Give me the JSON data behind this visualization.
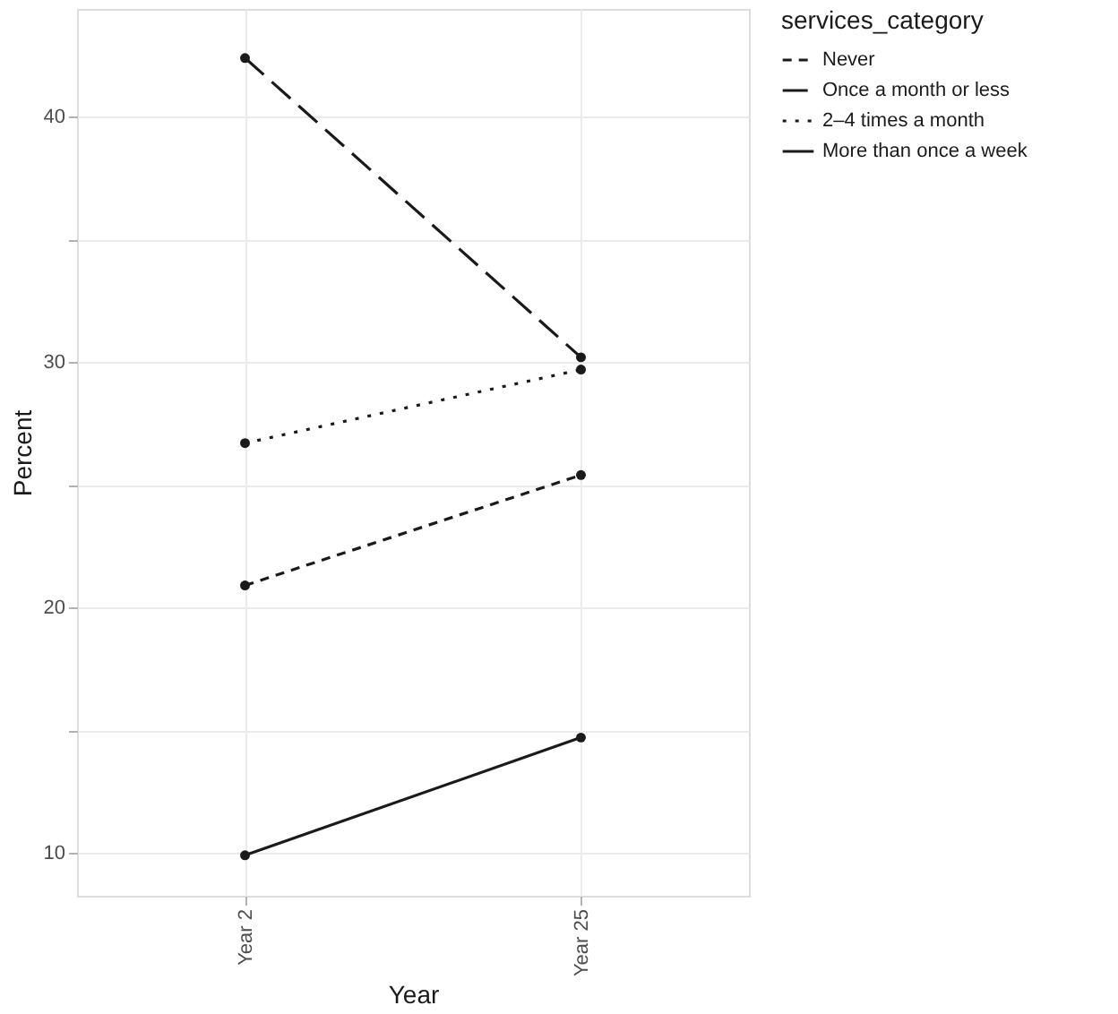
{
  "chart_data": {
    "type": "line",
    "xlabel": "Year",
    "ylabel": "Percent",
    "legend_title": "services_category",
    "categories": [
      "Year 2",
      "Year 25"
    ],
    "series": [
      {
        "name": "Never",
        "color": "#1a1a1a",
        "values": [
          20.9,
          25.4
        ],
        "line_style": "dashed"
      },
      {
        "name": "Once a month or less",
        "color": "#1a1a1a",
        "values": [
          42.4,
          30.2
        ],
        "line_style": "longdash"
      },
      {
        "name": "2–4 times a month",
        "color": "#1a1a1a",
        "values": [
          26.7,
          29.7
        ],
        "line_style": "dotted"
      },
      {
        "name": "More than once a week",
        "color": "#1a1a1a",
        "values": [
          9.9,
          14.7
        ],
        "line_style": "solid"
      }
    ],
    "ylim": [
      8.25,
      44.4
    ],
    "yticks": [
      10,
      {
        "value": 15,
        "label": null
      },
      20,
      {
        "value": 25,
        "label": null
      },
      30,
      {
        "value": 35,
        "label": null
      },
      40
    ],
    "grid": true,
    "legend": "right",
    "marker": "circle"
  }
}
